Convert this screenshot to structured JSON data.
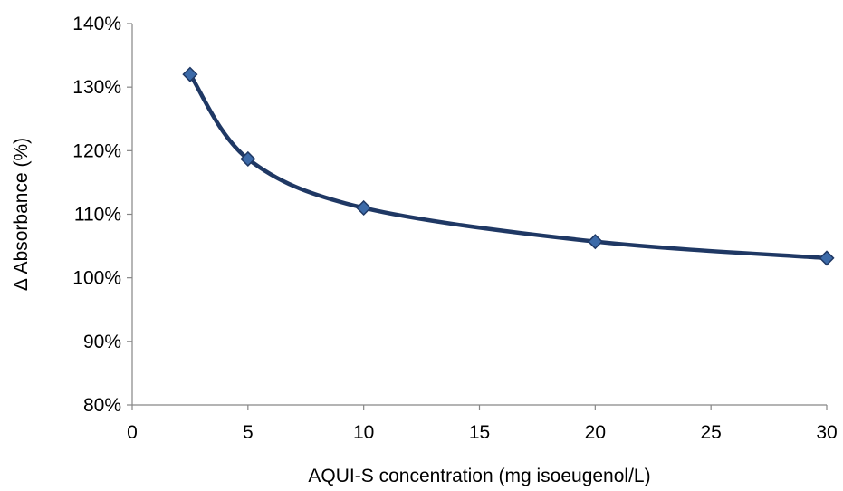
{
  "chart_data": {
    "type": "line",
    "xlabel": "AQUI-S concentration (mg isoeugenol/L)",
    "ylabel": "Δ Absorbance (%)",
    "xlim": [
      0,
      30
    ],
    "ylim": [
      80,
      140
    ],
    "x_ticks": [
      0,
      5,
      10,
      15,
      20,
      25,
      30
    ],
    "y_ticks": [
      80,
      90,
      100,
      110,
      120,
      130,
      140
    ],
    "x_tick_labels": [
      "0",
      "5",
      "10",
      "15",
      "20",
      "25",
      "30"
    ],
    "y_tick_labels": [
      "80%",
      "90%",
      "100%",
      "110%",
      "120%",
      "130%",
      "140%"
    ],
    "grid": false,
    "legend": "none",
    "series": [
      {
        "x": [
          2.5,
          5,
          10,
          20,
          30
        ],
        "values": [
          132,
          118.7,
          111,
          105.7,
          103.1
        ],
        "color": "#1f3864",
        "marker": "diamond",
        "marker_color": "#3c6aa8",
        "smooth": true
      }
    ]
  }
}
